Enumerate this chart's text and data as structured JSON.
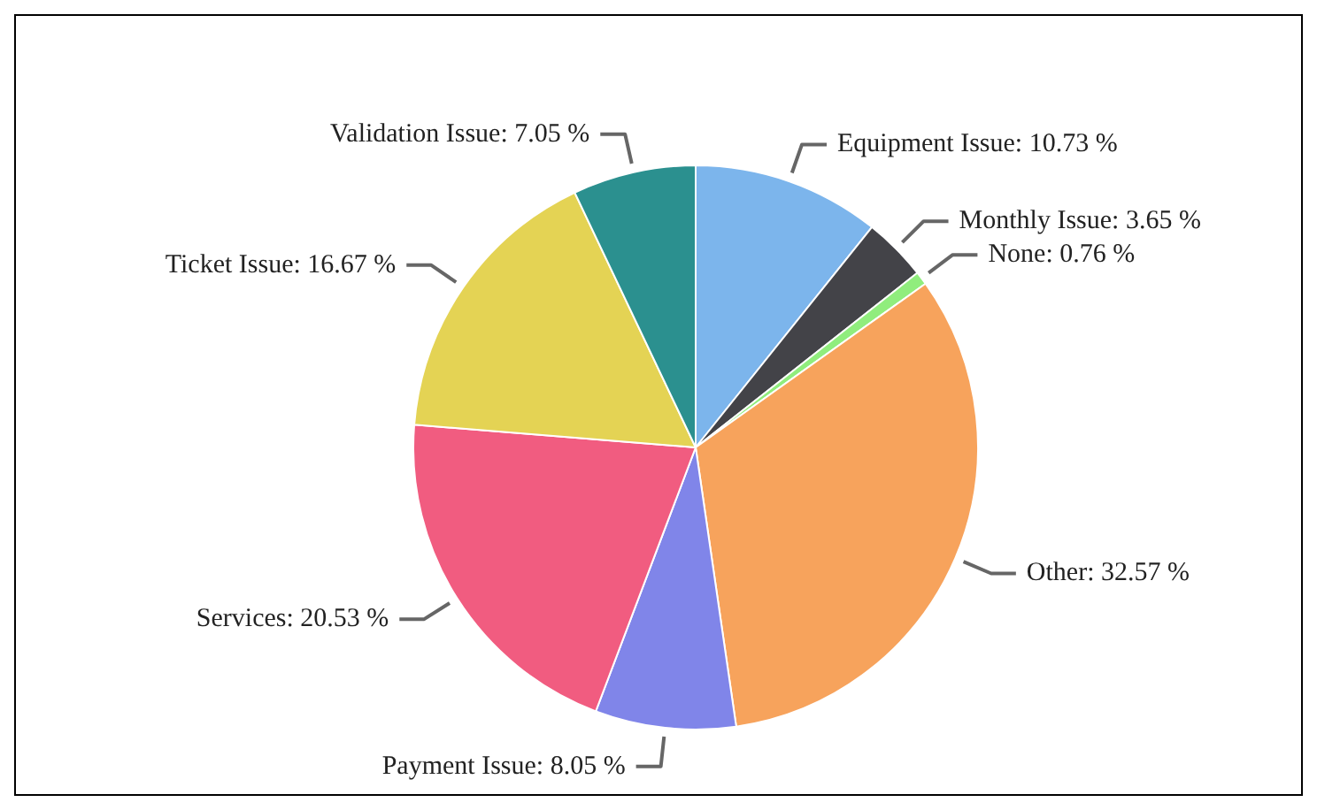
{
  "chart_data": {
    "type": "pie",
    "categories": [
      "Equipment Issue",
      "Monthly Issue",
      "None",
      "Other",
      "Payment Issue",
      "Services",
      "Ticket Issue",
      "Validation Issue"
    ],
    "values": [
      10.73,
      3.65,
      0.76,
      32.57,
      8.05,
      20.53,
      16.67,
      7.05
    ],
    "value_labels": [
      ": 10.73 %",
      ": 3.65 %",
      ": 0.76 %",
      ": 32.57 %",
      ": 8.05 %",
      ": 20.53 %",
      ": 16.67 %",
      ": 7.05 %"
    ],
    "colors": [
      "#7cb5ec",
      "#434348",
      "#90ed7d",
      "#f7a35c",
      "#8085e9",
      "#f15c80",
      "#e4d354",
      "#2b908f"
    ],
    "legend": false
  }
}
